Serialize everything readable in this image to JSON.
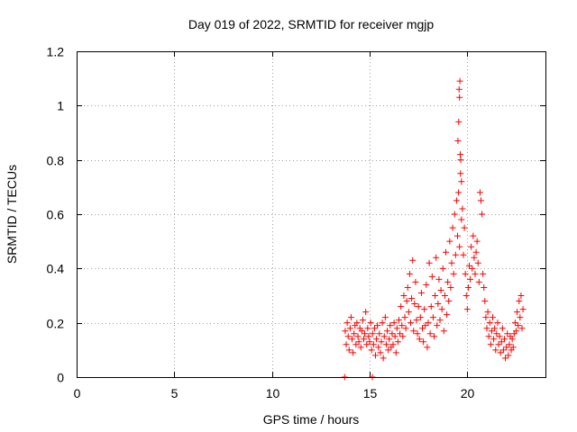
{
  "chart_data": {
    "type": "scatter",
    "title": "Day 019 of 2022, SRMTID for receiver mgjp",
    "xlabel": "GPS time / hours",
    "ylabel": "SRMTID / TECUs",
    "xlim": [
      0,
      24
    ],
    "ylim": [
      0,
      1.2
    ],
    "x_ticks": [
      0,
      5,
      10,
      15,
      20
    ],
    "x_tick_labels": [
      "0",
      "5",
      "10",
      "15",
      "20"
    ],
    "y_ticks": [
      0,
      0.2,
      0.4,
      0.6,
      0.8,
      1.0,
      1.2
    ],
    "y_tick_labels": [
      "0",
      "0.2",
      "0.4",
      "0.6",
      "0.8",
      "1",
      "1.2"
    ],
    "grid": true,
    "marker": "plus",
    "color": "#ff0000",
    "series": [
      {
        "name": "SRMTID",
        "points": [
          [
            13.72,
            0.0
          ],
          [
            15.14,
            0.0
          ],
          [
            13.75,
            0.17
          ],
          [
            13.8,
            0.12
          ],
          [
            13.85,
            0.2
          ],
          [
            13.9,
            0.15
          ],
          [
            13.95,
            0.1
          ],
          [
            14.0,
            0.18
          ],
          [
            14.05,
            0.22
          ],
          [
            14.1,
            0.14
          ],
          [
            14.15,
            0.09
          ],
          [
            14.2,
            0.16
          ],
          [
            14.25,
            0.19
          ],
          [
            14.3,
            0.12
          ],
          [
            14.35,
            0.2
          ],
          [
            14.4,
            0.15
          ],
          [
            14.45,
            0.13
          ],
          [
            14.5,
            0.18
          ],
          [
            14.55,
            0.11
          ],
          [
            14.6,
            0.17
          ],
          [
            14.65,
            0.21
          ],
          [
            14.7,
            0.14
          ],
          [
            14.75,
            0.16
          ],
          [
            14.8,
            0.24
          ],
          [
            14.85,
            0.12
          ],
          [
            14.9,
            0.18
          ],
          [
            14.95,
            0.15
          ],
          [
            15.0,
            0.13
          ],
          [
            15.05,
            0.2
          ],
          [
            15.1,
            0.1
          ],
          [
            15.15,
            0.16
          ],
          [
            15.2,
            0.12
          ],
          [
            15.25,
            0.18
          ],
          [
            15.3,
            0.08
          ],
          [
            15.35,
            0.14
          ],
          [
            15.4,
            0.19
          ],
          [
            15.45,
            0.11
          ],
          [
            15.5,
            0.16
          ],
          [
            15.55,
            0.09
          ],
          [
            15.6,
            0.13
          ],
          [
            15.65,
            0.2
          ],
          [
            15.7,
            0.07
          ],
          [
            15.75,
            0.15
          ],
          [
            15.8,
            0.22
          ],
          [
            15.85,
            0.12
          ],
          [
            15.9,
            0.17
          ],
          [
            15.95,
            0.1
          ],
          [
            16.0,
            0.14
          ],
          [
            16.05,
            0.19
          ],
          [
            16.1,
            0.11
          ],
          [
            16.15,
            0.16
          ],
          [
            16.2,
            0.12
          ],
          [
            16.25,
            0.2
          ],
          [
            16.3,
            0.15
          ],
          [
            16.35,
            0.09
          ],
          [
            16.4,
            0.18
          ],
          [
            16.45,
            0.13
          ],
          [
            16.5,
            0.21
          ],
          [
            16.55,
            0.16
          ],
          [
            16.6,
            0.26
          ],
          [
            16.65,
            0.19
          ],
          [
            16.7,
            0.15
          ],
          [
            16.75,
            0.3
          ],
          [
            16.8,
            0.22
          ],
          [
            16.85,
            0.18
          ],
          [
            16.9,
            0.28
          ],
          [
            16.95,
            0.33
          ],
          [
            17.0,
            0.24
          ],
          [
            17.05,
            0.38
          ],
          [
            17.1,
            0.2
          ],
          [
            17.15,
            0.29
          ],
          [
            17.2,
            0.43
          ],
          [
            17.25,
            0.17
          ],
          [
            17.3,
            0.27
          ],
          [
            17.35,
            0.35
          ],
          [
            17.4,
            0.21
          ],
          [
            17.45,
            0.16
          ],
          [
            17.5,
            0.26
          ],
          [
            17.55,
            0.14
          ],
          [
            17.6,
            0.22
          ],
          [
            17.65,
            0.31
          ],
          [
            17.7,
            0.18
          ],
          [
            17.75,
            0.13
          ],
          [
            17.8,
            0.25
          ],
          [
            17.85,
            0.19
          ],
          [
            17.9,
            0.34
          ],
          [
            17.95,
            0.11
          ],
          [
            18.0,
            0.2
          ],
          [
            18.05,
            0.42
          ],
          [
            18.1,
            0.16
          ],
          [
            18.15,
            0.26
          ],
          [
            18.2,
            0.37
          ],
          [
            18.25,
            0.22
          ],
          [
            18.3,
            0.15
          ],
          [
            18.35,
            0.3
          ],
          [
            18.4,
            0.44
          ],
          [
            18.45,
            0.19
          ],
          [
            18.5,
            0.27
          ],
          [
            18.55,
            0.36
          ],
          [
            18.6,
            0.21
          ],
          [
            18.65,
            0.32
          ],
          [
            18.7,
            0.25
          ],
          [
            18.75,
            0.4
          ],
          [
            18.8,
            0.17
          ],
          [
            18.85,
            0.3
          ],
          [
            18.9,
            0.46
          ],
          [
            18.95,
            0.23
          ],
          [
            19.0,
            0.35
          ],
          [
            19.05,
            0.28
          ],
          [
            19.1,
            0.5
          ],
          [
            19.15,
            0.33
          ],
          [
            19.2,
            0.42
          ],
          [
            19.25,
            0.55
          ],
          [
            19.3,
            0.38
          ],
          [
            19.35,
            0.6
          ],
          [
            19.4,
            0.45
          ],
          [
            19.45,
            0.65
          ],
          [
            19.5,
            0.52
          ],
          [
            19.55,
            0.68
          ],
          [
            19.6,
            0.48
          ],
          [
            19.65,
            0.75
          ],
          [
            19.7,
            0.58
          ],
          [
            19.52,
            0.87
          ],
          [
            19.56,
            0.94
          ],
          [
            19.6,
            1.03
          ],
          [
            19.58,
            1.06
          ],
          [
            19.62,
            1.09
          ],
          [
            19.64,
            0.82
          ],
          [
            19.66,
            0.8
          ],
          [
            19.7,
            0.72
          ],
          [
            19.75,
            0.62
          ],
          [
            19.8,
            0.45
          ],
          [
            19.85,
            0.55
          ],
          [
            19.9,
            0.38
          ],
          [
            19.95,
            0.3
          ],
          [
            20.0,
            0.25
          ],
          [
            20.05,
            0.33
          ],
          [
            20.1,
            0.41
          ],
          [
            20.15,
            0.36
          ],
          [
            20.2,
            0.48
          ],
          [
            20.25,
            0.4
          ],
          [
            20.3,
            0.52
          ],
          [
            20.35,
            0.44
          ],
          [
            20.4,
            0.38
          ],
          [
            20.45,
            0.46
          ],
          [
            20.5,
            0.5
          ],
          [
            20.55,
            0.42
          ],
          [
            20.6,
            0.35
          ],
          [
            20.65,
            0.68
          ],
          [
            20.7,
            0.65
          ],
          [
            20.75,
            0.6
          ],
          [
            20.8,
            0.38
          ],
          [
            20.85,
            0.33
          ],
          [
            20.9,
            0.28
          ],
          [
            20.95,
            0.22
          ],
          [
            21.0,
            0.18
          ],
          [
            21.05,
            0.24
          ],
          [
            21.1,
            0.15
          ],
          [
            21.15,
            0.2
          ],
          [
            21.2,
            0.12
          ],
          [
            21.25,
            0.17
          ],
          [
            21.3,
            0.22
          ],
          [
            21.35,
            0.14
          ],
          [
            21.4,
            0.18
          ],
          [
            21.45,
            0.1
          ],
          [
            21.5,
            0.16
          ],
          [
            21.55,
            0.2
          ],
          [
            21.6,
            0.12
          ],
          [
            21.65,
            0.15
          ],
          [
            21.7,
            0.09
          ],
          [
            21.75,
            0.13
          ],
          [
            21.8,
            0.18
          ],
          [
            21.85,
            0.1
          ],
          [
            21.9,
            0.14
          ],
          [
            21.95,
            0.07
          ],
          [
            22.0,
            0.11
          ],
          [
            22.05,
            0.16
          ],
          [
            22.1,
            0.08
          ],
          [
            22.15,
            0.12
          ],
          [
            22.2,
            0.15
          ],
          [
            22.25,
            0.1
          ],
          [
            22.3,
            0.14
          ],
          [
            22.35,
            0.11
          ],
          [
            22.4,
            0.16
          ],
          [
            22.45,
            0.2
          ],
          [
            22.5,
            0.17
          ],
          [
            22.55,
            0.24
          ],
          [
            22.6,
            0.19
          ],
          [
            22.65,
            0.28
          ],
          [
            22.7,
            0.22
          ],
          [
            22.75,
            0.3
          ],
          [
            22.8,
            0.18
          ],
          [
            22.85,
            0.25
          ]
        ]
      }
    ]
  }
}
